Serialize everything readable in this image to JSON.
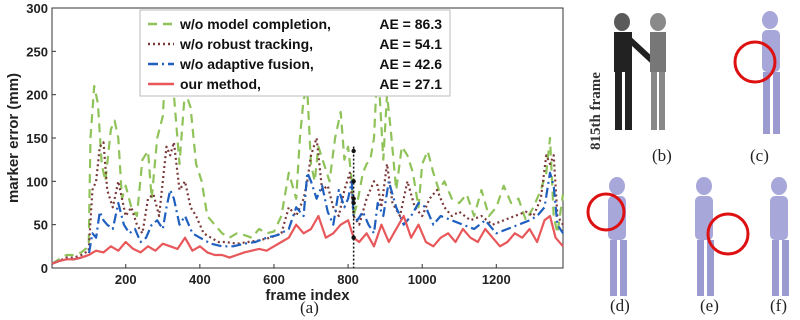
{
  "chart_data": {
    "type": "line",
    "xlabel": "frame index",
    "ylabel": "marker error (mm)",
    "xlim": [
      1,
      1380
    ],
    "ylim": [
      0,
      300
    ],
    "xticks": [
      200,
      400,
      600,
      800,
      1000,
      1200
    ],
    "yticks": [
      0,
      50,
      100,
      150,
      200,
      250,
      300
    ],
    "legend_position": "top-center",
    "grid": false,
    "marker_frame": 815,
    "series": [
      {
        "name": "w/o model completion,",
        "ae_label": "AE = 86.3",
        "color": "#8fc35a",
        "style": "dashed",
        "x": [
          1,
          20,
          40,
          60,
          80,
          100,
          105,
          115,
          125,
          135,
          145,
          160,
          170,
          180,
          190,
          200,
          215,
          230,
          245,
          260,
          270,
          285,
          300,
          310,
          320,
          330,
          345,
          360,
          375,
          390,
          405,
          420,
          440,
          460,
          480,
          500,
          520,
          540,
          560,
          580,
          600,
          620,
          640,
          660,
          670,
          680,
          690,
          700,
          710,
          720,
          735,
          750,
          765,
          780,
          790,
          800,
          810,
          815,
          825,
          840,
          850,
          860,
          870,
          880,
          895,
          905,
          915,
          930,
          945,
          960,
          975,
          990,
          1000,
          1015,
          1030,
          1045,
          1060,
          1080,
          1100,
          1120,
          1140,
          1160,
          1180,
          1200,
          1220,
          1240,
          1260,
          1280,
          1300,
          1320,
          1335,
          1345,
          1355,
          1365,
          1380
        ],
        "y": [
          5,
          10,
          15,
          15,
          18,
          25,
          150,
          210,
          190,
          120,
          100,
          160,
          170,
          150,
          80,
          95,
          70,
          60,
          125,
          135,
          80,
          150,
          175,
          250,
          230,
          200,
          120,
          205,
          185,
          120,
          100,
          60,
          50,
          40,
          35,
          40,
          38,
          35,
          45,
          40,
          42,
          60,
          110,
          80,
          150,
          195,
          205,
          120,
          100,
          140,
          120,
          100,
          150,
          180,
          125,
          140,
          100,
          60,
          75,
          110,
          120,
          125,
          150,
          240,
          125,
          200,
          160,
          90,
          140,
          130,
          110,
          70,
          120,
          135,
          110,
          90,
          100,
          80,
          75,
          85,
          60,
          90,
          60,
          70,
          95,
          75,
          80,
          55,
          70,
          90,
          110,
          150,
          60,
          40,
          85
        ]
      },
      {
        "name": "w/o robust tracking,",
        "ae_label": "AE = 54.1",
        "color": "#7b3a3a",
        "style": "dotted",
        "x": [
          1,
          20,
          40,
          60,
          80,
          100,
          110,
          120,
          130,
          140,
          150,
          165,
          180,
          190,
          200,
          215,
          230,
          245,
          260,
          275,
          290,
          300,
          310,
          320,
          330,
          345,
          360,
          375,
          390,
          410,
          430,
          450,
          470,
          500,
          530,
          560,
          590,
          620,
          640,
          660,
          680,
          690,
          700,
          715,
          730,
          745,
          760,
          775,
          790,
          805,
          815,
          830,
          850,
          870,
          880,
          890,
          905,
          920,
          940,
          960,
          980,
          1000,
          1020,
          1040,
          1060,
          1080,
          1100,
          1130,
          1160,
          1190,
          1220,
          1250,
          1280,
          1300,
          1320,
          1335,
          1345,
          1355,
          1365,
          1380
        ],
        "y": [
          5,
          8,
          12,
          12,
          15,
          20,
          90,
          100,
          140,
          145,
          90,
          70,
          100,
          80,
          60,
          70,
          50,
          40,
          80,
          85,
          60,
          100,
          140,
          130,
          145,
          90,
          100,
          70,
          60,
          40,
          35,
          30,
          30,
          28,
          30,
          32,
          35,
          40,
          70,
          60,
          80,
          100,
          130,
          150,
          90,
          95,
          70,
          60,
          90,
          110,
          60,
          50,
          80,
          100,
          95,
          70,
          120,
          75,
          60,
          100,
          70,
          60,
          80,
          90,
          70,
          60,
          65,
          55,
          60,
          50,
          55,
          60,
          65,
          60,
          80,
          130,
          120,
          130,
          60,
          50
        ]
      },
      {
        "name": "w/o adaptive fusion,",
        "ae_label": "AE = 42.6",
        "color": "#1f5fbf",
        "style": "dashdot",
        "x": [
          1,
          20,
          40,
          60,
          80,
          100,
          110,
          120,
          130,
          140,
          150,
          165,
          180,
          195,
          210,
          225,
          240,
          255,
          270,
          285,
          300,
          310,
          320,
          330,
          345,
          360,
          380,
          400,
          430,
          460,
          490,
          520,
          550,
          580,
          610,
          640,
          660,
          680,
          690,
          700,
          715,
          730,
          745,
          760,
          775,
          790,
          800,
          810,
          815,
          825,
          840,
          855,
          870,
          880,
          895,
          910,
          930,
          950,
          970,
          990,
          1010,
          1030,
          1050,
          1080,
          1110,
          1140,
          1170,
          1200,
          1230,
          1260,
          1290,
          1310,
          1330,
          1345,
          1355,
          1365,
          1380
        ],
        "y": [
          5,
          8,
          10,
          10,
          12,
          15,
          40,
          35,
          65,
          55,
          50,
          45,
          75,
          50,
          40,
          45,
          30,
          35,
          50,
          55,
          45,
          70,
          90,
          80,
          50,
          60,
          40,
          35,
          28,
          25,
          25,
          28,
          30,
          35,
          38,
          45,
          70,
          60,
          110,
          100,
          80,
          95,
          65,
          50,
          90,
          70,
          80,
          100,
          60,
          55,
          65,
          50,
          40,
          75,
          60,
          100,
          70,
          50,
          60,
          75,
          70,
          50,
          60,
          55,
          50,
          45,
          55,
          40,
          45,
          50,
          55,
          60,
          70,
          110,
          95,
          50,
          40
        ]
      },
      {
        "name": "our method,",
        "ae_label": "AE = 27.1",
        "color": "#e8575a",
        "style": "solid",
        "x": [
          1,
          20,
          40,
          60,
          80,
          100,
          120,
          140,
          160,
          180,
          200,
          220,
          240,
          260,
          280,
          300,
          320,
          340,
          360,
          380,
          400,
          420,
          440,
          460,
          480,
          500,
          520,
          540,
          560,
          580,
          600,
          620,
          640,
          660,
          680,
          700,
          720,
          740,
          760,
          780,
          800,
          815,
          830,
          850,
          870,
          890,
          910,
          930,
          950,
          970,
          990,
          1010,
          1030,
          1050,
          1070,
          1090,
          1110,
          1130,
          1150,
          1170,
          1190,
          1210,
          1230,
          1250,
          1270,
          1290,
          1310,
          1330,
          1345,
          1360,
          1380
        ],
        "y": [
          5,
          8,
          10,
          10,
          12,
          15,
          20,
          18,
          25,
          20,
          30,
          22,
          18,
          25,
          20,
          28,
          25,
          22,
          35,
          20,
          25,
          18,
          15,
          15,
          12,
          15,
          18,
          20,
          22,
          20,
          25,
          30,
          35,
          50,
          40,
          45,
          60,
          35,
          40,
          50,
          55,
          35,
          30,
          40,
          25,
          50,
          30,
          45,
          60,
          35,
          50,
          30,
          25,
          35,
          40,
          30,
          45,
          35,
          30,
          45,
          35,
          25,
          30,
          40,
          35,
          45,
          30,
          55,
          60,
          35,
          25
        ]
      }
    ]
  },
  "labels": {
    "panel_a": "(a)",
    "panel_b": "(b)",
    "panel_c": "(c)",
    "panel_d": "(d)",
    "panel_e": "(e)",
    "panel_f": "(f)",
    "frame_label": "815th frame"
  }
}
